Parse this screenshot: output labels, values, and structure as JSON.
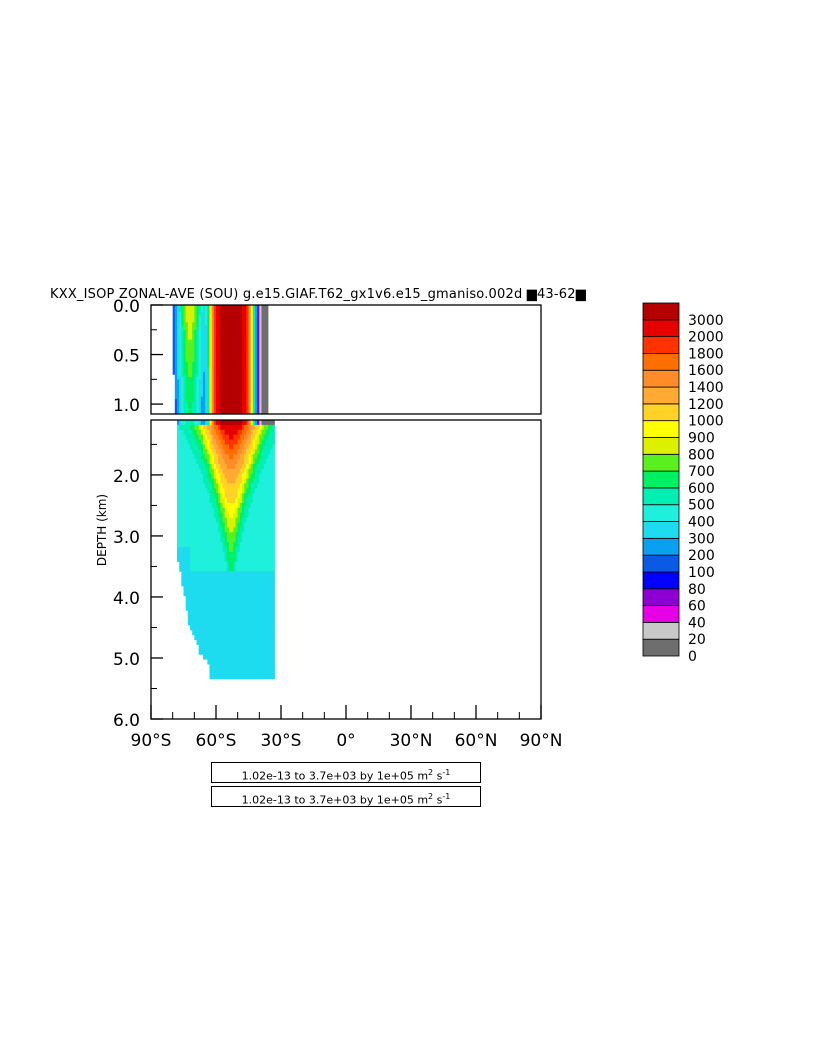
{
  "title": "KXX_ISOP ZONAL-AVE (SOU) g.e15.GIAF.T62_gx1v6.e15_gmaniso.002d ▆43-62▆",
  "ylabel": "DEPTH (km)",
  "range_text": "1.02e-13 to 3.7e+03 by 1e+05 m",
  "range_unit_exp1": "2",
  "range_unit_mid": " s",
  "range_unit_exp2": "-1",
  "chart_data": {
    "type": "heatmap",
    "title": "KXX_ISOP ZONAL-AVE (SOU) g.e15.GIAF.T62_gx1v6.e15_gmaniso.002d ▆43-62▆",
    "xlabel": "",
    "ylabel": "DEPTH (km)",
    "x_ticks": [
      "90°S",
      "60°S",
      "30°S",
      "0°",
      "30°N",
      "60°N",
      "90°N"
    ],
    "x_tick_values": [
      -90,
      -60,
      -30,
      0,
      30,
      60,
      90
    ],
    "y_ticks_top": [
      "0.0",
      "0.5",
      "1.0"
    ],
    "y_ticks_top_values": [
      0.0,
      0.5,
      1.0
    ],
    "y_ticks_bottom": [
      "2.0",
      "3.0",
      "4.0",
      "5.0",
      "6.0"
    ],
    "y_ticks_bottom_values": [
      2.0,
      3.0,
      4.0,
      5.0,
      6.0
    ],
    "xlim": [
      -90,
      90
    ],
    "ylim_top": [
      0.0,
      1.1
    ],
    "ylim_bottom": [
      1.1,
      6.0
    ],
    "colorbar_levels": [
      "0",
      "20",
      "40",
      "60",
      "80",
      "100",
      "200",
      "300",
      "400",
      "500",
      "600",
      "700",
      "800",
      "900",
      "1000",
      "1200",
      "1400",
      "1600",
      "1800",
      "2000",
      "3000"
    ],
    "colorbar_colors": [
      "#6e6e6e",
      "#c8c8c8",
      "#e600e6",
      "#8c00d2",
      "#0000ff",
      "#0a5ae6",
      "#0aa0f0",
      "#1edcf0",
      "#1ef0dc",
      "#00f0b4",
      "#00f064",
      "#5af01e",
      "#dcf000",
      "#ffff00",
      "#ffd228",
      "#ffaa32",
      "#ff8c28",
      "#ff6e00",
      "#ff3200",
      "#e60000",
      "#b40000"
    ],
    "data_extent": {
      "lat_south": -80,
      "lat_north": -33,
      "max_depth_km": 5.35
    },
    "core_max": {
      "lat": -53,
      "depth_range_km": [
        0.0,
        1.5
      ]
    }
  }
}
